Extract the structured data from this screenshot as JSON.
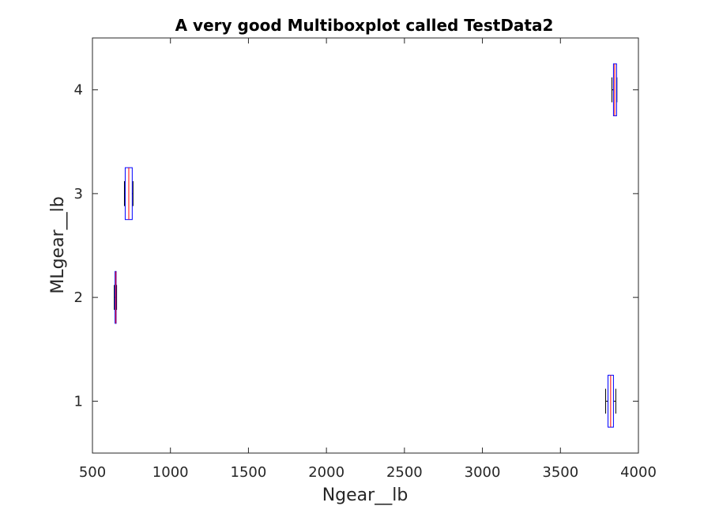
{
  "chart_data": {
    "type": "boxplot",
    "orientation": "horizontal",
    "title": "A very good Multiboxplot called TestData2",
    "xlabel": "Ngear__lb",
    "ylabel": "MLgear__lb",
    "xlim": [
      500,
      4000
    ],
    "ylim": [
      0.5,
      4.5
    ],
    "xticks": [
      500,
      1000,
      1500,
      2000,
      2500,
      3000,
      3500,
      4000
    ],
    "xtick_labels": [
      "500",
      "1000",
      "1500",
      "2000",
      "2500",
      "3000",
      "3500",
      "4000"
    ],
    "yticks": [
      1,
      2,
      3,
      4
    ],
    "ytick_labels": [
      "1",
      "2",
      "3",
      "4"
    ],
    "grid": false,
    "box_outline_color": "#0000ff",
    "median_color": "#ff0000",
    "whisker_color": "#000000",
    "boxes": [
      {
        "category": 1,
        "whisker_low": 3790,
        "q1": 3805,
        "median": 3822,
        "q3": 3840,
        "whisker_high": 3855
      },
      {
        "category": 2,
        "whisker_low": 640,
        "q1": 645,
        "median": 650,
        "q3": 652,
        "whisker_high": 655
      },
      {
        "category": 3,
        "whisker_low": 705,
        "q1": 710,
        "median": 733,
        "q3": 755,
        "whisker_high": 760
      },
      {
        "category": 4,
        "whisker_low": 3830,
        "q1": 3840,
        "median": 3848,
        "q3": 3860,
        "whisker_high": 3862
      }
    ]
  }
}
